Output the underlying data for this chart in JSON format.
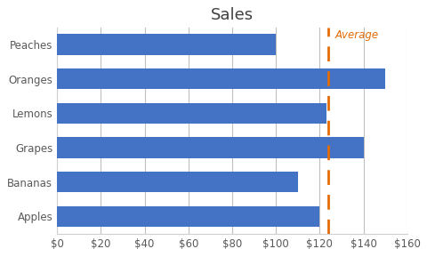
{
  "title": "Sales",
  "categories": [
    "Peaches",
    "Oranges",
    "Lemons",
    "Grapes",
    "Bananas",
    "Apples"
  ],
  "values": [
    100,
    150,
    123,
    140,
    110,
    120
  ],
  "bar_color": "#4472C4",
  "average_value": 123.83,
  "average_line_color": "#E36C09",
  "average_label": "Average",
  "xlim": [
    0,
    160
  ],
  "xtick_step": 20,
  "background_color": "#FFFFFF",
  "grid_color": "#BFBFBF",
  "bar_height": 0.6,
  "title_fontsize": 13,
  "label_fontsize": 8.5,
  "tick_fontsize": 8.5,
  "spine_color": "#D0D0D0"
}
